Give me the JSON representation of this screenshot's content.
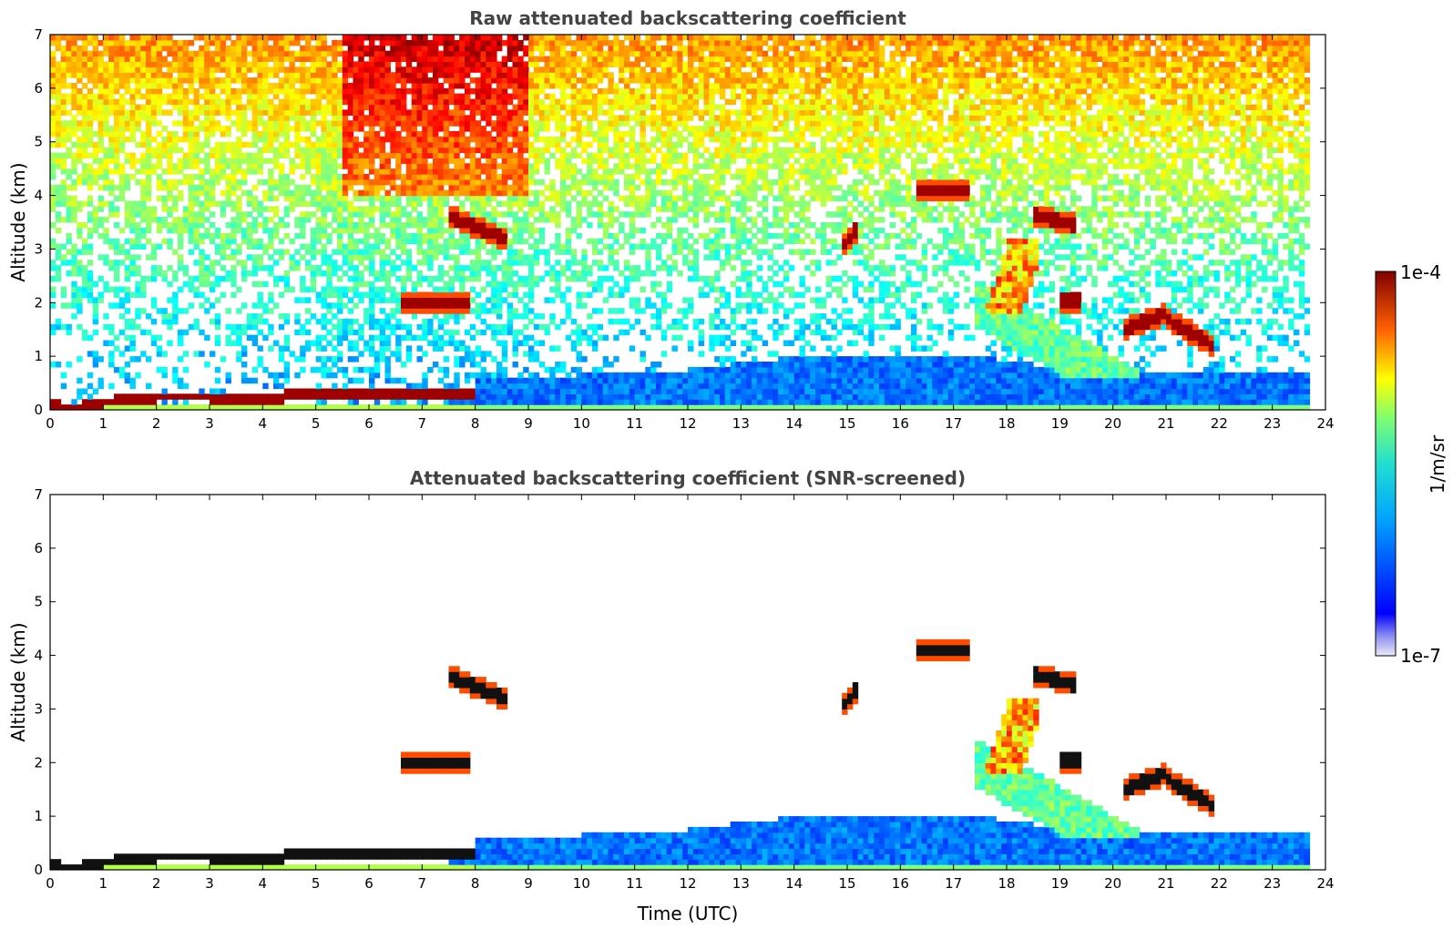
{
  "chart_data": [
    {
      "type": "heatmap",
      "title": "Raw attenuated backscattering coefficient",
      "xlabel": "",
      "ylabel": "Altitude (km)",
      "xlim": [
        0,
        24
      ],
      "ylim": [
        0,
        7
      ],
      "xticks": [
        "0",
        "1",
        "2",
        "3",
        "4",
        "5",
        "6",
        "7",
        "8",
        "9",
        "10",
        "11",
        "12",
        "13",
        "14",
        "15",
        "16",
        "17",
        "18",
        "19",
        "20",
        "21",
        "22",
        "23",
        "24"
      ],
      "yticks": [
        "0",
        "1",
        "2",
        "3",
        "4",
        "5",
        "6",
        "7"
      ],
      "data_end_time": 23.65,
      "features": {
        "surface_layer": [
          [
            0,
            0.1
          ],
          [
            0.5,
            0.07
          ],
          [
            1,
            0.17
          ],
          [
            2,
            0.27
          ],
          [
            3,
            0.27
          ],
          [
            4,
            0.2
          ],
          [
            4.5,
            0.3
          ],
          [
            5,
            0.3
          ],
          [
            6,
            0.33
          ],
          [
            7,
            0.35
          ],
          [
            7.6,
            0.36
          ]
        ],
        "cloud_layers": [
          {
            "x": [
              7.55,
              8.55
            ],
            "y": [
              3.6,
              3.2
            ]
          },
          {
            "x": [
              6.6,
              7.9
            ],
            "y": [
              2.0,
              2.0
            ]
          },
          {
            "x": [
              14.95,
              15.2
            ],
            "y": [
              3.1,
              3.4
            ]
          },
          {
            "x": [
              16.3,
              17.3
            ],
            "y": [
              4.1,
              4.1
            ]
          },
          {
            "x": [
              18.5,
              19.3
            ],
            "y": [
              3.65,
              3.45
            ]
          },
          {
            "x": [
              19.0,
              19.4
            ],
            "y": [
              2.05,
              2.05
            ]
          },
          {
            "x": [
              20.2,
              21.0
            ],
            "y": [
              1.5,
              1.8
            ]
          },
          {
            "x": [
              21.0,
              21.9
            ],
            "y": [
              1.7,
              1.2
            ]
          }
        ],
        "virga": {
          "x": [
            17.5,
            18.6
          ],
          "y": [
            1.8,
            3.2
          ]
        }
      }
    },
    {
      "type": "heatmap",
      "title": "Attenuated backscattering coefficient (SNR-screened)",
      "xlabel": "Time (UTC)",
      "ylabel": "Altitude (km)",
      "xlim": [
        0,
        24
      ],
      "ylim": [
        0,
        7
      ],
      "xticks": [
        "0",
        "1",
        "2",
        "3",
        "4",
        "5",
        "6",
        "7",
        "8",
        "9",
        "10",
        "11",
        "12",
        "13",
        "14",
        "15",
        "16",
        "17",
        "18",
        "19",
        "20",
        "21",
        "22",
        "23",
        "24"
      ],
      "yticks": [
        "0",
        "1",
        "2",
        "3",
        "4",
        "5",
        "6",
        "7"
      ],
      "data_end_time": 23.65,
      "screened": true
    }
  ],
  "colorbar": {
    "label": "1/m/sr",
    "max_label": "1e-4",
    "min_label": "1e-7",
    "min": 1e-07,
    "max": 0.0001,
    "scale": "log",
    "colormap": "jet"
  }
}
